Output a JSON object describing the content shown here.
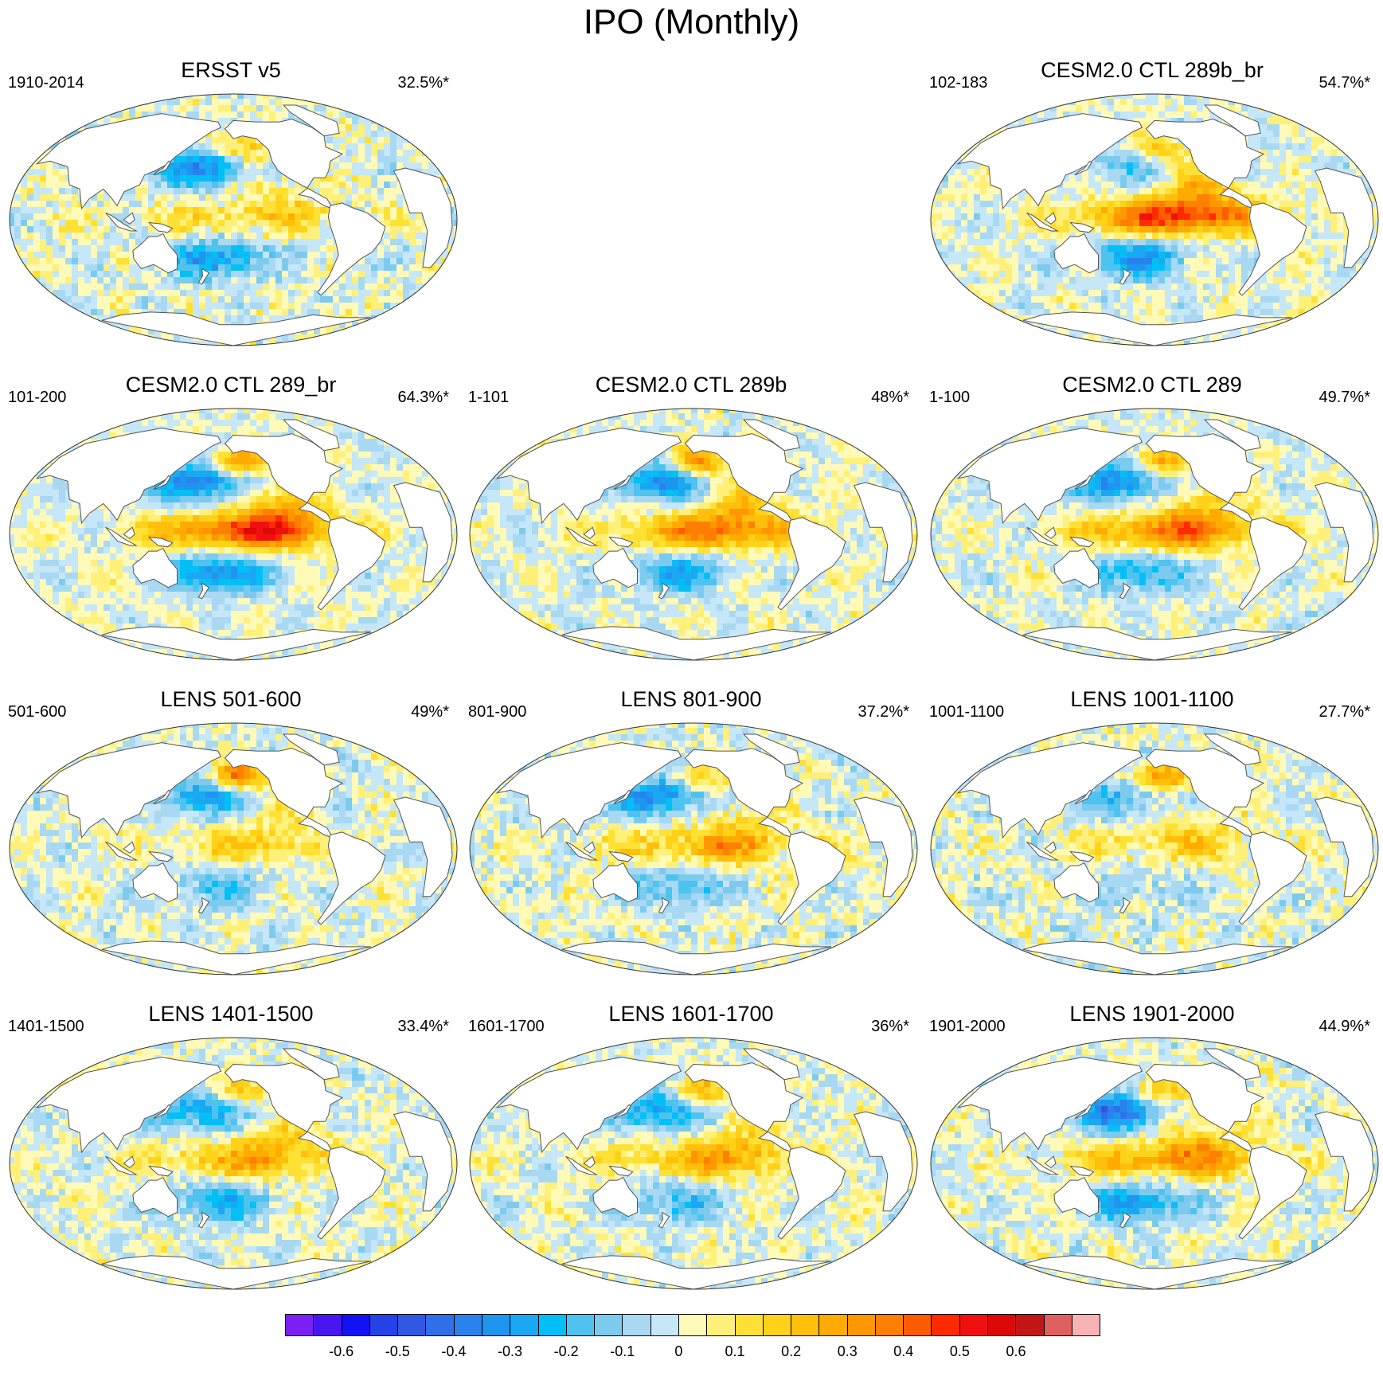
{
  "title": "IPO (Monthly)",
  "panels": [
    {
      "id": "ersst",
      "title": "ERSST v5",
      "period": "1910-2014",
      "percent": "32.5%*",
      "pattern": {
        "np": -0.35,
        "tep": 0.15,
        "nea": 0.25,
        "scw": -0.3,
        "noise": 0.08,
        "seed": 3
      }
    },
    {
      "id": "ctl289b_br",
      "title": "CESM2.0 CTL 289b_br",
      "period": "102-183",
      "percent": "54.7%*",
      "pattern": {
        "np": -0.15,
        "tep": 0.45,
        "nea": 0.2,
        "scw": -0.3,
        "noise": 0.06,
        "seed": 7
      }
    },
    {
      "id": "ctl289_br",
      "title": "CESM2.0 CTL 289_br",
      "period": "101-200",
      "percent": "64.3%*",
      "pattern": {
        "np": -0.4,
        "tep": 0.45,
        "nea": 0.35,
        "scw": -0.35,
        "noise": 0.05,
        "seed": 11
      }
    },
    {
      "id": "ctl289b",
      "title": "CESM2.0 CTL 289b",
      "period": "1-101",
      "percent": "48%*",
      "pattern": {
        "np": -0.35,
        "tep": 0.35,
        "nea": 0.35,
        "scw": -0.25,
        "noise": 0.06,
        "seed": 13
      }
    },
    {
      "id": "ctl289",
      "title": "CESM2.0 CTL 289",
      "period": "1-100",
      "percent": "49.7%*",
      "pattern": {
        "np": -0.35,
        "tep": 0.35,
        "nea": 0.3,
        "scw": -0.25,
        "noise": 0.06,
        "seed": 17
      }
    },
    {
      "id": "lens501",
      "title": "LENS 501-600",
      "period": "501-600",
      "percent": "49%*",
      "pattern": {
        "np": -0.3,
        "tep": 0.15,
        "nea": 0.4,
        "scw": -0.15,
        "noise": 0.07,
        "seed": 19
      }
    },
    {
      "id": "lens801",
      "title": "LENS 801-900",
      "period": "801-900",
      "percent": "37.2%*",
      "pattern": {
        "np": -0.35,
        "tep": 0.25,
        "nea": 0.2,
        "scw": -0.2,
        "noise": 0.08,
        "seed": 23
      }
    },
    {
      "id": "lens1001",
      "title": "LENS 1001-1100",
      "period": "1001-1100",
      "percent": "27.7%*",
      "pattern": {
        "np": -0.2,
        "tep": 0.15,
        "nea": 0.35,
        "scw": -0.1,
        "noise": 0.08,
        "seed": 29
      }
    },
    {
      "id": "lens1401",
      "title": "LENS 1401-1500",
      "period": "1401-1500",
      "percent": "33.4%*",
      "pattern": {
        "np": -0.3,
        "tep": 0.25,
        "nea": 0.2,
        "scw": -0.25,
        "noise": 0.07,
        "seed": 31
      }
    },
    {
      "id": "lens1601",
      "title": "LENS 1601-1700",
      "period": "1601-1700",
      "percent": "36%*",
      "pattern": {
        "np": -0.3,
        "tep": 0.25,
        "nea": 0.25,
        "scw": -0.2,
        "noise": 0.07,
        "seed": 37
      }
    },
    {
      "id": "lens1901",
      "title": "LENS 1901-2000",
      "period": "1901-2000",
      "percent": "44.9%*",
      "pattern": {
        "np": -0.4,
        "tep": 0.3,
        "nea": 0.25,
        "scw": -0.3,
        "noise": 0.07,
        "seed": 41
      }
    }
  ],
  "colorbar": {
    "min": -0.7,
    "max": 0.7,
    "step": 0.05,
    "colors": [
      "#7b1ff2",
      "#4a15f0",
      "#1212f5",
      "#2442e6",
      "#3058e0",
      "#2f6fe8",
      "#2a82ee",
      "#1e96f0",
      "#1aa8f2",
      "#04bff5",
      "#4ec3f0",
      "#7ccbef",
      "#a9d8f2",
      "#c5e7f7",
      "#fffab8",
      "#fff07a",
      "#ffe135",
      "#ffd21a",
      "#ffbf0a",
      "#ffab00",
      "#ff9700",
      "#ff7f00",
      "#ff5c00",
      "#ff2a00",
      "#f01010",
      "#dd0808",
      "#c21515",
      "#e06060",
      "#f7b3b3"
    ],
    "tick_labels": [
      "-0.6",
      "-0.5",
      "-0.4",
      "-0.3",
      "-0.2",
      "-0.1",
      "0",
      "0.1",
      "0.2",
      "0.3",
      "0.4",
      "0.5",
      "0.6"
    ]
  }
}
